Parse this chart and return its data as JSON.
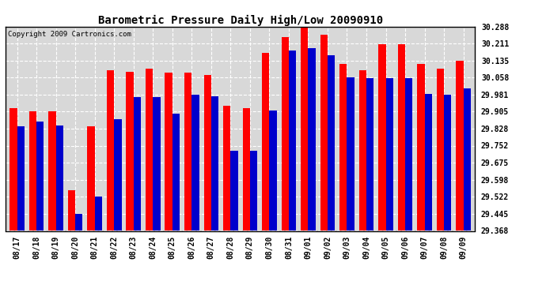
{
  "title": "Barometric Pressure Daily High/Low 20090910",
  "copyright": "Copyright 2009 Cartronics.com",
  "background_color": "#ffffff",
  "plot_bg_color": "#d8d8d8",
  "bar_color_high": "#ff0000",
  "bar_color_low": "#0000cc",
  "ylim_min": 29.368,
  "ylim_max": 30.288,
  "yticks": [
    29.368,
    29.445,
    29.522,
    29.598,
    29.675,
    29.752,
    29.828,
    29.905,
    29.981,
    30.058,
    30.135,
    30.211,
    30.288
  ],
  "categories": [
    "08/17",
    "08/18",
    "08/19",
    "08/20",
    "08/21",
    "08/22",
    "08/23",
    "08/24",
    "08/25",
    "08/26",
    "08/27",
    "08/28",
    "08/29",
    "08/30",
    "08/31",
    "09/01",
    "09/02",
    "09/03",
    "09/04",
    "09/05",
    "09/06",
    "09/07",
    "09/08",
    "09/09"
  ],
  "highs": [
    29.92,
    29.905,
    29.908,
    29.551,
    29.84,
    30.09,
    30.085,
    30.1,
    30.08,
    30.08,
    30.07,
    29.93,
    29.92,
    30.17,
    30.24,
    30.29,
    30.25,
    30.12,
    30.09,
    30.21,
    30.21,
    30.12,
    30.1,
    30.135
  ],
  "lows": [
    29.84,
    29.86,
    29.843,
    29.445,
    29.522,
    29.87,
    29.97,
    29.97,
    29.895,
    29.98,
    29.975,
    29.73,
    29.73,
    29.91,
    30.18,
    30.19,
    30.16,
    30.06,
    30.055,
    30.055,
    30.055,
    29.985,
    29.98,
    30.01
  ]
}
